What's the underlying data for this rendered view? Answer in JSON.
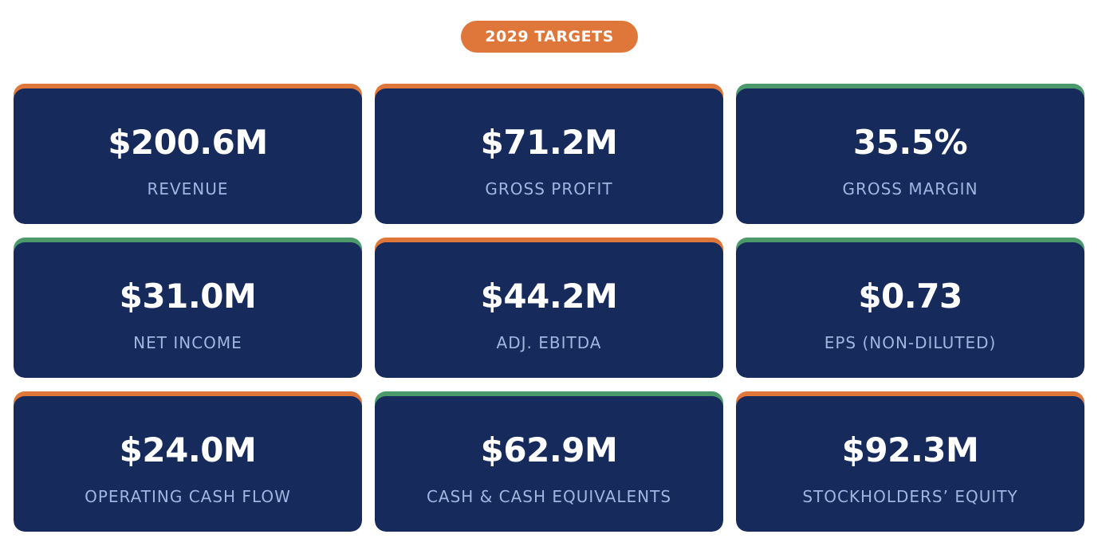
{
  "header": {
    "badge_label": "2029 TARGETS",
    "badge_color": "#e0773a"
  },
  "colors": {
    "card_background": "#172a5c",
    "value_text": "#ffffff",
    "label_text": "#9fb6e0",
    "accent_orange": "#e0773a",
    "accent_green": "#4c9a6c"
  },
  "cards": [
    {
      "value": "$200.6M",
      "label": "REVENUE",
      "accent": "orange"
    },
    {
      "value": "$71.2M",
      "label": "GROSS PROFIT",
      "accent": "orange"
    },
    {
      "value": "35.5%",
      "label": "GROSS MARGIN",
      "accent": "green"
    },
    {
      "value": "$31.0M",
      "label": "NET INCOME",
      "accent": "green"
    },
    {
      "value": "$44.2M",
      "label": "ADJ. EBITDA",
      "accent": "orange"
    },
    {
      "value": "$0.73",
      "label": "EPS (NON-DILUTED)",
      "accent": "green"
    },
    {
      "value": "$24.0M",
      "label": "OPERATING CASH FLOW",
      "accent": "orange"
    },
    {
      "value": "$62.9M",
      "label": "CASH & CASH EQUIVALENTS",
      "accent": "green"
    },
    {
      "value": "$92.3M",
      "label": "STOCKHOLDERS’ EQUITY",
      "accent": "orange"
    }
  ]
}
